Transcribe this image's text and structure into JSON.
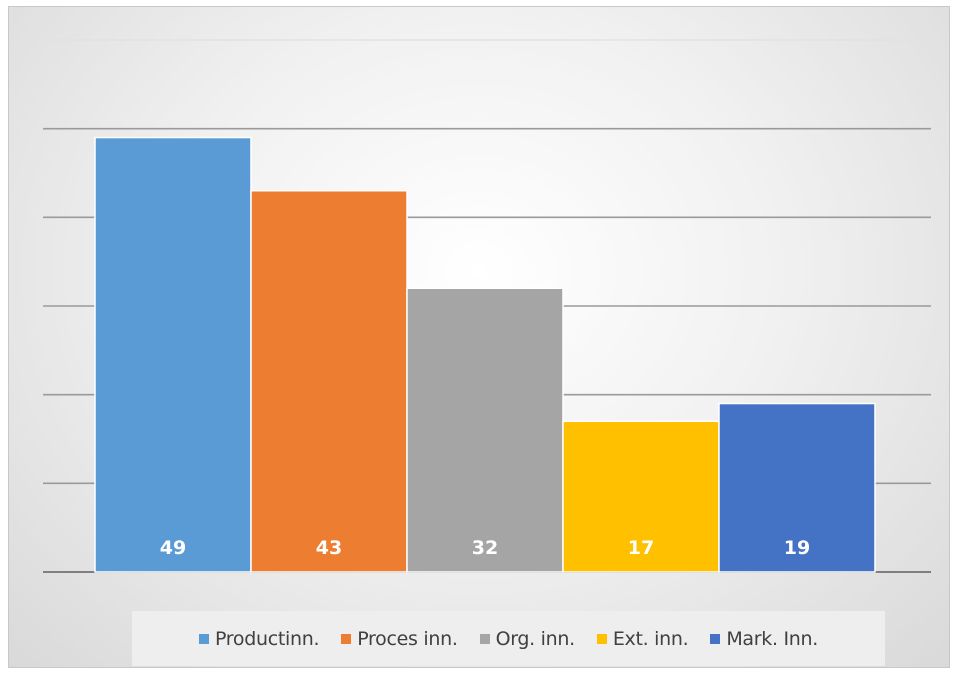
{
  "chart_data": {
    "type": "bar",
    "title": "",
    "xlabel": "",
    "ylabel": "",
    "categories": [
      "Productinn.",
      "Proces inn.",
      "Org. inn.",
      "Ext. inn.",
      "Mark. Inn."
    ],
    "values": [
      49,
      43,
      32,
      17,
      19
    ],
    "colors": [
      "#5b9bd5",
      "#ed7d31",
      "#a5a5a5",
      "#ffc000",
      "#4472c4"
    ],
    "ylim": [
      0,
      60
    ],
    "gridlines": [
      0,
      10,
      20,
      30,
      40,
      50,
      60
    ],
    "grid": true,
    "show_y_axis_labels": false,
    "data_labels": true,
    "legend": {
      "position": "bottom"
    }
  }
}
